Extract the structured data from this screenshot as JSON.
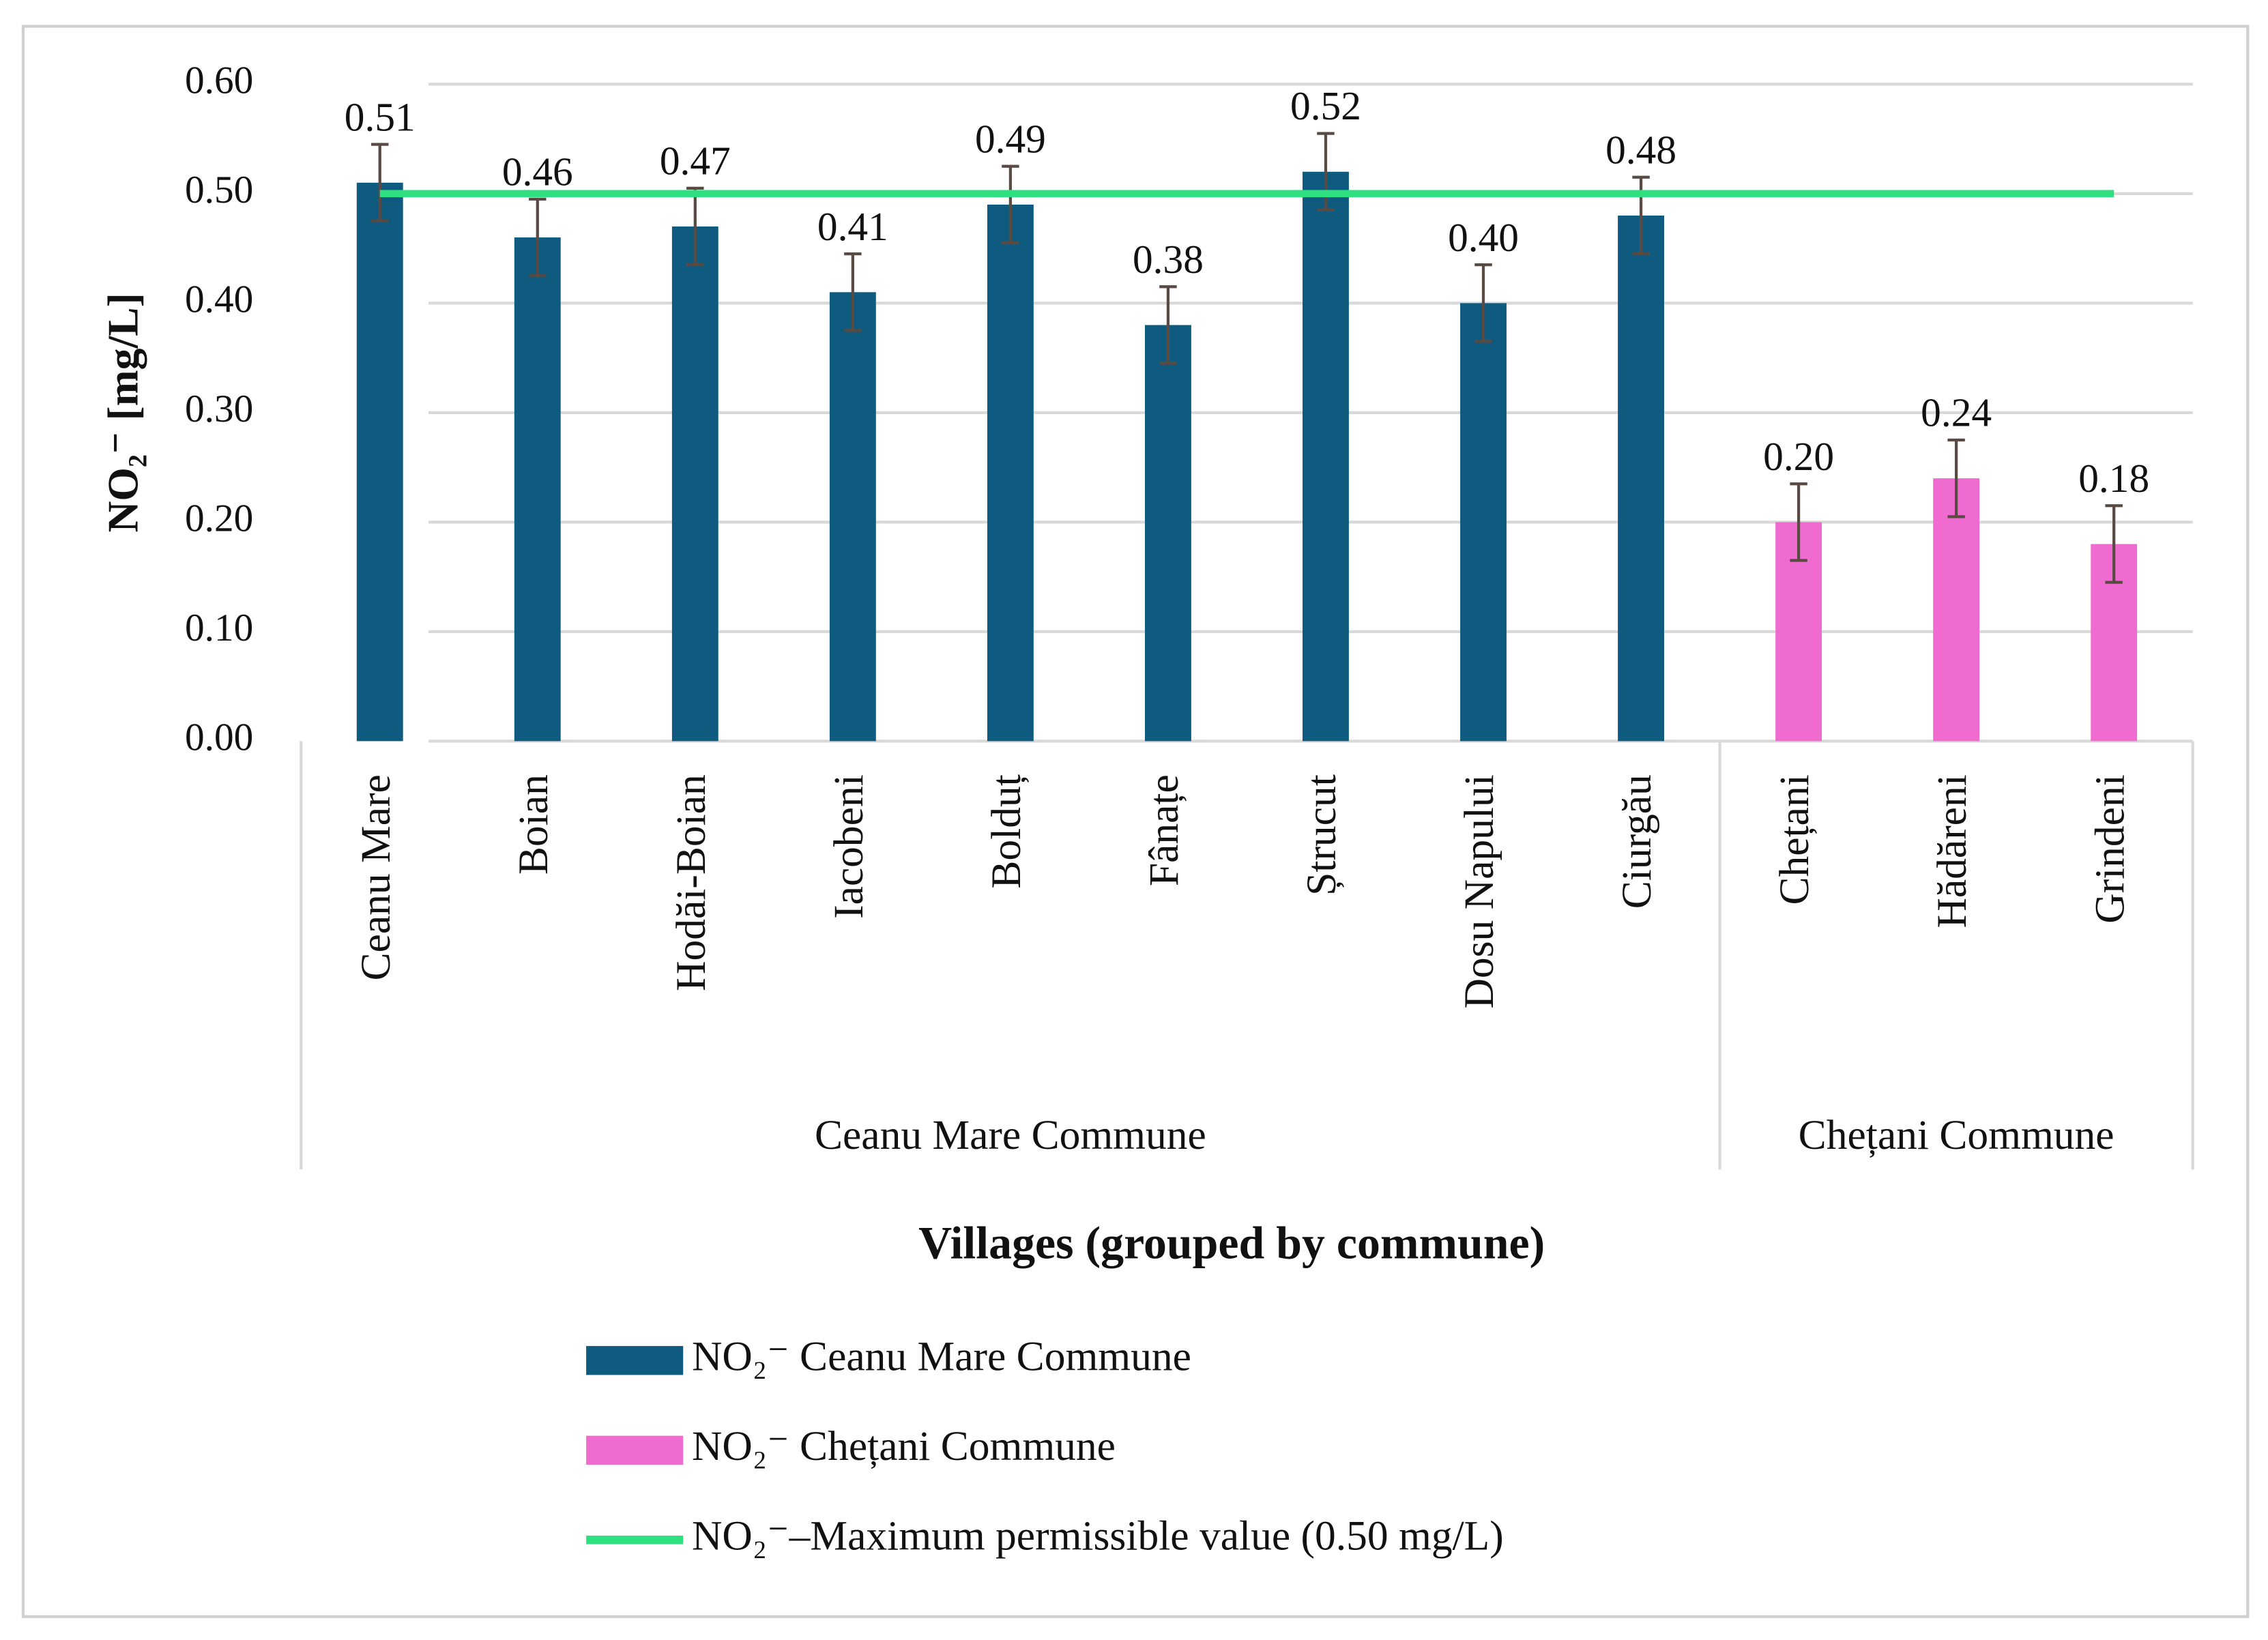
{
  "chart_data": {
    "type": "bar",
    "x_label": "Villages (grouped by commune)",
    "y_label": "NO₂⁻ [mg/L]",
    "categories": [
      "Ceanu Mare",
      "Boian",
      "Hodăi-Boian",
      "Iacobeni",
      "Bolduț",
      "Fânațe",
      "Ștrucut",
      "Dosu Napului",
      "Ciurgău",
      "Chețani",
      "Hădăreni",
      "Grindeni"
    ],
    "groups": [
      {
        "label": "Ceanu Mare Commune",
        "span": 9
      },
      {
        "label": "Chețani Commune",
        "span": 3
      }
    ],
    "series": [
      {
        "name": "NO₂⁻ Ceanu Mare Commune",
        "color": "#0e5b7f",
        "values": [
          0.51,
          0.46,
          0.47,
          0.41,
          0.49,
          0.38,
          0.52,
          0.4,
          0.48,
          null,
          null,
          null
        ],
        "value_labels": [
          "0.51",
          "0.46",
          "0.47",
          "0.41",
          "0.49",
          "0.38",
          "0.52",
          "0.40",
          "0.48",
          null,
          null,
          null
        ],
        "errors": [
          0.035,
          0.035,
          0.035,
          0.035,
          0.035,
          0.035,
          0.035,
          0.035,
          0.035,
          null,
          null,
          null
        ]
      },
      {
        "name": "NO₂⁻ Chețani Commune",
        "color": "#f06bcf",
        "values": [
          null,
          null,
          null,
          null,
          null,
          null,
          null,
          null,
          null,
          0.2,
          0.24,
          0.18
        ],
        "value_labels": [
          null,
          null,
          null,
          null,
          null,
          null,
          null,
          null,
          null,
          "0.20",
          "0.24",
          "0.18"
        ],
        "errors": [
          null,
          null,
          null,
          null,
          null,
          null,
          null,
          null,
          null,
          0.035,
          0.035,
          0.035
        ]
      },
      {
        "name": "NO₂⁻–Maximum permissible value (0.50 mg/L)",
        "color": "#2ee07f",
        "type": "line",
        "values": [
          0.5,
          0.5,
          0.5,
          0.5,
          0.5,
          0.5,
          0.5,
          0.5,
          0.5,
          0.5,
          0.5,
          0.5
        ]
      }
    ],
    "ylim": [
      0,
      0.6
    ],
    "yticks": [
      {
        "value": 0,
        "label": "0.00"
      },
      {
        "value": 0.1,
        "label": "0.10"
      },
      {
        "value": 0.2,
        "label": "0.20"
      },
      {
        "value": 0.3,
        "label": "0.30"
      },
      {
        "value": 0.4,
        "label": "0.40"
      },
      {
        "value": 0.5,
        "label": "0.50"
      },
      {
        "value": 0.6,
        "label": "0.60"
      }
    ],
    "grid": true,
    "legend": "bottom"
  }
}
